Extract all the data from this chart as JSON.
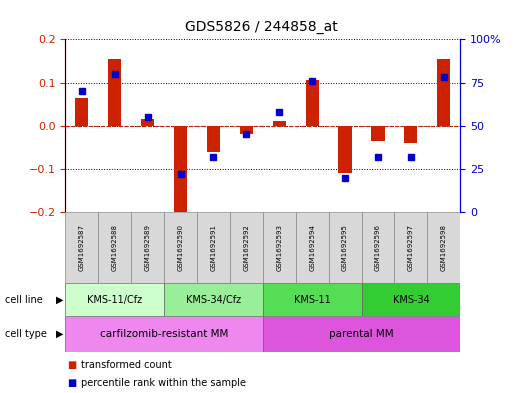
{
  "title": "GDS5826 / 244858_at",
  "samples": [
    "GSM1692587",
    "GSM1692588",
    "GSM1692589",
    "GSM1692590",
    "GSM1692591",
    "GSM1692592",
    "GSM1692593",
    "GSM1692594",
    "GSM1692595",
    "GSM1692596",
    "GSM1692597",
    "GSM1692598"
  ],
  "transformed_count": [
    0.065,
    0.155,
    0.015,
    -0.215,
    -0.06,
    -0.02,
    0.01,
    0.105,
    -0.11,
    -0.035,
    -0.04,
    0.155
  ],
  "percentile_rank": [
    70,
    80,
    55,
    22,
    32,
    45,
    58,
    76,
    20,
    32,
    32,
    78
  ],
  "bar_color": "#cc2200",
  "dot_color": "#0000cc",
  "ylim_left": [
    -0.2,
    0.2
  ],
  "ylim_right": [
    0,
    100
  ],
  "yticks_left": [
    -0.2,
    -0.1,
    0.0,
    0.1,
    0.2
  ],
  "yticks_right": [
    0,
    25,
    50,
    75,
    100
  ],
  "ytick_labels_right": [
    "0",
    "25",
    "50",
    "75",
    "100%"
  ],
  "zero_line_color": "#cc2200",
  "grid_color": "black",
  "cell_line_groups": [
    {
      "label": "KMS-11/Cfz",
      "start": 0,
      "end": 3,
      "color": "#ccffcc"
    },
    {
      "label": "KMS-34/Cfz",
      "start": 3,
      "end": 6,
      "color": "#99ee99"
    },
    {
      "label": "KMS-11",
      "start": 6,
      "end": 9,
      "color": "#55dd55"
    },
    {
      "label": "KMS-34",
      "start": 9,
      "end": 12,
      "color": "#33cc33"
    }
  ],
  "cell_type_groups": [
    {
      "label": "carfilzomib-resistant MM",
      "start": 0,
      "end": 6,
      "color": "#ee88ee"
    },
    {
      "label": "parental MM",
      "start": 6,
      "end": 12,
      "color": "#dd55dd"
    }
  ],
  "cell_line_label": "cell line",
  "cell_type_label": "cell type",
  "legend_items": [
    {
      "color": "#cc2200",
      "label": "transformed count"
    },
    {
      "color": "#0000cc",
      "label": "percentile rank within the sample"
    }
  ],
  "bg_color": "#d8d8d8",
  "plot_bg": "#ffffff"
}
